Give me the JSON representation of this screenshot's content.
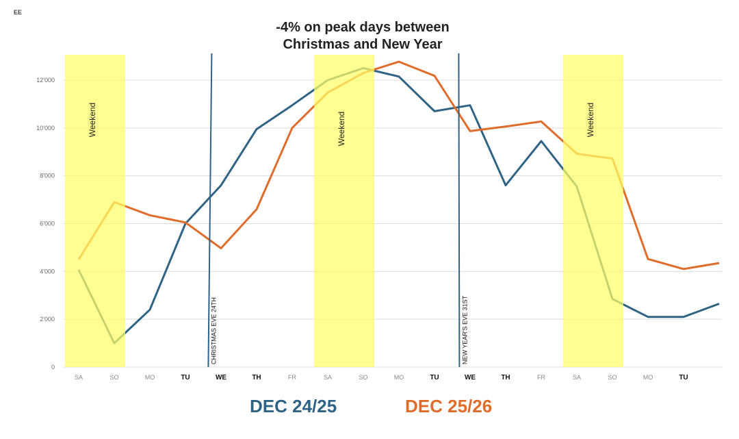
{
  "corner_label": "EE",
  "chart_data": {
    "type": "line",
    "title_line1": "-4% on peak days between",
    "title_line2": "Christmas and New Year",
    "categories": [
      "SA",
      "SO",
      "MO",
      "TU",
      "WE",
      "TH",
      "FR",
      "SA",
      "SO",
      "MO",
      "TU",
      "WE",
      "TH",
      "FR",
      "SA",
      "SO",
      "MO",
      "TU",
      ""
    ],
    "bold_categories": [
      3,
      4,
      5,
      10,
      11,
      12,
      17
    ],
    "ylim": [
      0,
      13000
    ],
    "yticks": [
      0,
      2000,
      4000,
      6000,
      8000,
      10000,
      12000
    ],
    "ytick_labels": [
      "0",
      "2'000",
      "4'000",
      "6'000",
      "8'000",
      "10'000",
      "12'000"
    ],
    "grid": true,
    "series": [
      {
        "name": "DEC 24/25",
        "color": "#2e6385",
        "values": [
          4070,
          1000,
          2400,
          6000,
          7600,
          9950,
          10950,
          12000,
          12500,
          12150,
          10700,
          10950,
          7600,
          9450,
          7550,
          2850,
          2100,
          2100,
          2650
        ]
      },
      {
        "name": "DEC 25/26",
        "color": "#e06c2a",
        "values": [
          4500,
          6900,
          6350,
          6050,
          4970,
          6600,
          10000,
          11480,
          12300,
          12770,
          12180,
          9870,
          10060,
          10270,
          8920,
          8720,
          4520,
          4100,
          4350
        ]
      }
    ],
    "weekend_bands": [
      [
        0,
        1
      ],
      [
        7,
        8
      ],
      [
        14,
        15
      ]
    ],
    "weekend_label": "Weekend",
    "band_color": "#ffff66",
    "markers": [
      {
        "index": 3.7,
        "label": "CHRISTMAS EVE 24TH"
      },
      {
        "index": 10.7,
        "label": "NEW YEAR'S EVE 31ST"
      }
    ]
  }
}
